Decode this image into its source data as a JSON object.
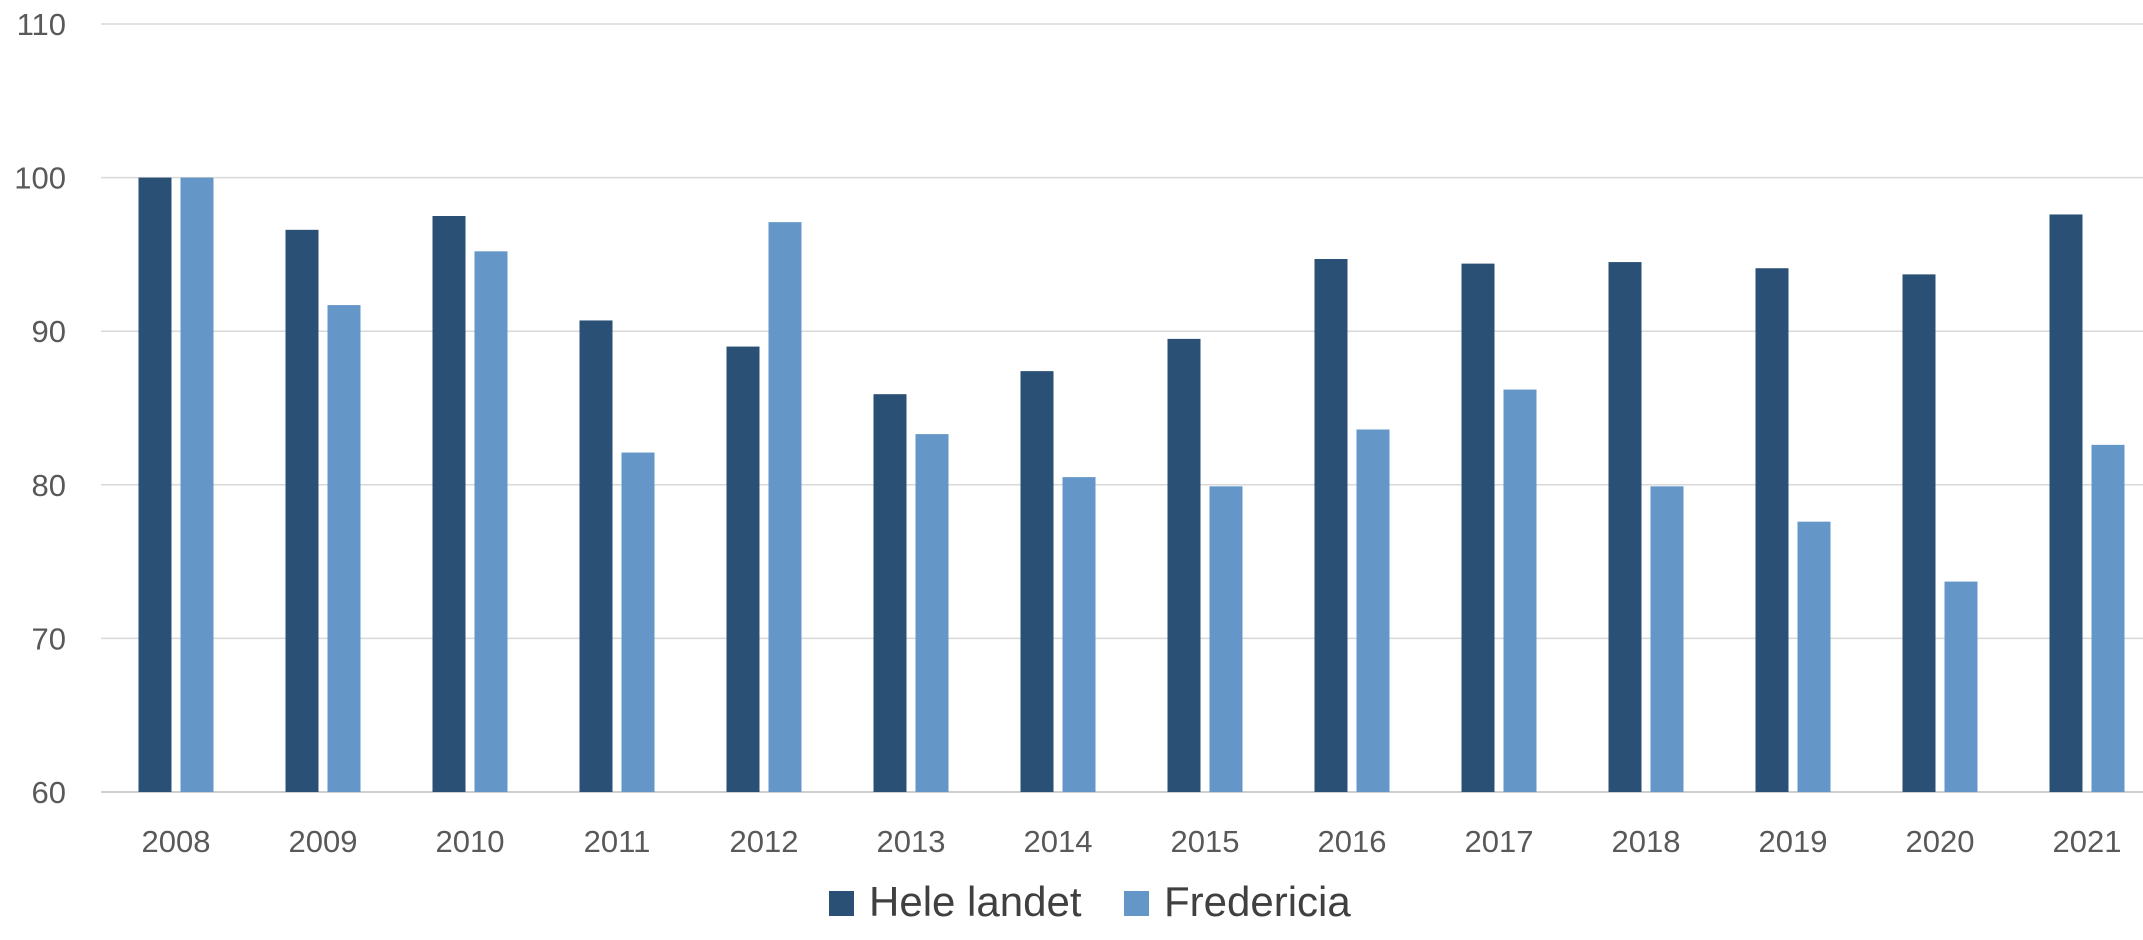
{
  "chart_data": {
    "type": "bar",
    "title": "",
    "xlabel": "",
    "ylabel": "",
    "categories": [
      "2008",
      "2009",
      "2010",
      "2011",
      "2012",
      "2013",
      "2014",
      "2015",
      "2016",
      "2017",
      "2018",
      "2019",
      "2020",
      "2021"
    ],
    "series": [
      {
        "name": "Hele landet",
        "color": "#2a5075",
        "values": [
          100,
          96.6,
          97.5,
          90.7,
          89.0,
          85.9,
          87.4,
          89.5,
          94.7,
          94.4,
          94.5,
          94.1,
          93.7,
          97.6
        ]
      },
      {
        "name": "Fredericia",
        "color": "#6497c8",
        "values": [
          100,
          91.7,
          95.2,
          82.1,
          97.1,
          83.3,
          80.5,
          79.9,
          83.6,
          86.2,
          79.9,
          77.6,
          73.7,
          82.6
        ]
      }
    ],
    "ylim": [
      60,
      110
    ],
    "yticks": [
      60,
      70,
      80,
      90,
      100,
      110
    ],
    "grid": true,
    "legend": "bottom-center"
  }
}
